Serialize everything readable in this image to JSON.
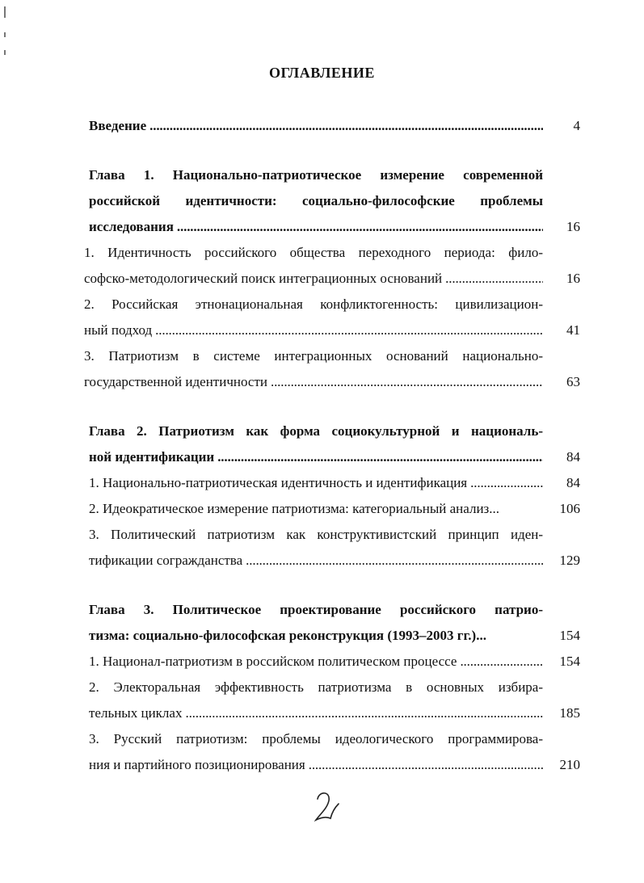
{
  "toc": {
    "title": "ОГЛАВЛЕНИЕ",
    "entries": [
      {
        "type": "chapter",
        "lines": [
          "Введение"
        ],
        "page": "4"
      },
      {
        "type": "chapter",
        "lines": [
          "Глава 1. Национально-патриотическое измерение современной",
          "российской идентичности: социально-философские проблемы",
          "исследования"
        ],
        "page": "16"
      },
      {
        "type": "section",
        "indent": true,
        "lines": [
          "1. Идентичность российского общества переходного периода: фило-",
          "софско-методологический поиск интеграционных оснований"
        ],
        "page": "16"
      },
      {
        "type": "section",
        "indent": true,
        "lines": [
          "2. Российская этнонациональная конфликтогенность: цивилизацион-",
          "ный подход"
        ],
        "page": "41"
      },
      {
        "type": "section",
        "indent": true,
        "lines": [
          "3. Патриотизм в системе интеграционных оснований национально-",
          "государственной идентичности"
        ],
        "page": "63"
      },
      {
        "type": "chapter",
        "lines": [
          "Глава 2. Патриотизм как форма социокультурной и националь-",
          "ной идентификации"
        ],
        "page": "84"
      },
      {
        "type": "section",
        "lines": [
          "1. Национально-патриотическая идентичность и идентификация"
        ],
        "page": "84"
      },
      {
        "type": "section",
        "lines": [
          "2. Идеократическое измерение патриотизма: категориальный анализ..."
        ],
        "page": "106",
        "noleader": true
      },
      {
        "type": "section",
        "lines": [
          "3. Политический патриотизм как конструктивистский принцип иден-",
          "тификации согражданства"
        ],
        "page": "129"
      },
      {
        "type": "chapter",
        "lines": [
          "Глава 3. Политическое проектирование российского патрио-",
          "тизма: социально-философская реконструкция (1993–2003 гг.)..."
        ],
        "page": "154",
        "noleader": true
      },
      {
        "type": "section",
        "lines": [
          "1. Национал-патриотизм в российском политическом процессе"
        ],
        "page": "154"
      },
      {
        "type": "section",
        "lines": [
          "2. Электоральная эффективность патриотизма в основных избира-",
          "тельных циклах"
        ],
        "page": "185"
      },
      {
        "type": "section",
        "lines": [
          "3. Русский патриотизм: проблемы идеологического программирова-",
          "ния и партийного позиционирования"
        ],
        "page": "210"
      }
    ],
    "gaps_after": [
      0,
      4,
      8
    ]
  },
  "page_number_handwritten": "2"
}
